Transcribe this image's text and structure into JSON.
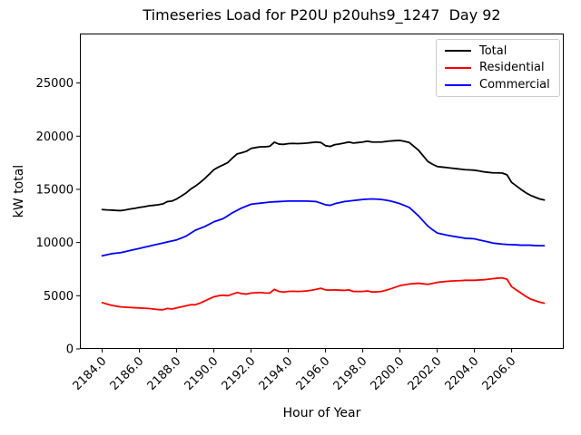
{
  "figure": {
    "background": "#ffffff"
  },
  "chart_data": {
    "type": "line",
    "title": "Timeseries Load for P20U p20uhs9_1247  Day 92",
    "xlabel": "Hour of Year",
    "ylabel": "kW total",
    "xlim": [
      2182.8,
      2208.8
    ],
    "ylim": [
      0,
      29650
    ],
    "grid": false,
    "legend_position": "upper right",
    "x_ticks": [
      2184,
      2186,
      2188,
      2190,
      2192,
      2194,
      2196,
      2198,
      2200,
      2202,
      2204,
      2206
    ],
    "x_tick_labels": [
      "2184.0",
      "2186.0",
      "2188.0",
      "2190.0",
      "2192.0",
      "2194.0",
      "2196.0",
      "2198.0",
      "2200.0",
      "2202.0",
      "2204.0",
      "2206.0"
    ],
    "y_ticks": [
      0,
      5000,
      10000,
      15000,
      20000,
      25000
    ],
    "y_tick_labels": [
      "0",
      "5000",
      "10000",
      "15000",
      "20000",
      "25000"
    ],
    "x": [
      2184.0,
      2184.25,
      2184.5,
      2184.75,
      2185.0,
      2185.25,
      2185.5,
      2185.75,
      2186.0,
      2186.25,
      2186.5,
      2186.75,
      2187.0,
      2187.25,
      2187.5,
      2187.75,
      2188.0,
      2188.25,
      2188.5,
      2188.75,
      2189.0,
      2189.25,
      2189.5,
      2189.75,
      2190.0,
      2190.25,
      2190.5,
      2190.75,
      2191.0,
      2191.25,
      2191.5,
      2191.75,
      2192.0,
      2192.25,
      2192.5,
      2192.75,
      2193.0,
      2193.25,
      2193.5,
      2193.75,
      2194.0,
      2194.25,
      2194.5,
      2194.75,
      2195.0,
      2195.25,
      2195.5,
      2195.75,
      2196.0,
      2196.25,
      2196.5,
      2196.75,
      2197.0,
      2197.25,
      2197.5,
      2197.75,
      2198.0,
      2198.25,
      2198.5,
      2198.75,
      2199.0,
      2199.25,
      2199.5,
      2199.75,
      2200.0,
      2200.25,
      2200.5,
      2200.75,
      2201.0,
      2201.25,
      2201.5,
      2201.75,
      2202.0,
      2202.25,
      2202.5,
      2202.75,
      2203.0,
      2203.25,
      2203.5,
      2203.75,
      2204.0,
      2204.25,
      2204.5,
      2204.75,
      2205.0,
      2205.25,
      2205.5,
      2205.75,
      2206.0,
      2206.25,
      2206.5,
      2206.75,
      2207.0,
      2207.25,
      2207.5,
      2207.75
    ],
    "series": [
      {
        "name": "Total",
        "color": "#000000",
        "values": [
          13100,
          13070,
          13050,
          13020,
          13000,
          13070,
          13150,
          13220,
          13300,
          13370,
          13450,
          13500,
          13550,
          13630,
          13850,
          13900,
          14100,
          14370,
          14650,
          15020,
          15300,
          15630,
          16000,
          16420,
          16850,
          17100,
          17300,
          17520,
          17950,
          18330,
          18450,
          18580,
          18850,
          18930,
          19000,
          19000,
          19050,
          19430,
          19250,
          19230,
          19300,
          19320,
          19300,
          19320,
          19350,
          19400,
          19450,
          19400,
          19100,
          19030,
          19200,
          19270,
          19350,
          19450,
          19350,
          19400,
          19450,
          19530,
          19450,
          19450,
          19450,
          19500,
          19550,
          19580,
          19600,
          19510,
          19400,
          19040,
          18670,
          18140,
          17620,
          17360,
          17150,
          17100,
          17050,
          17000,
          16950,
          16900,
          16850,
          16830,
          16800,
          16730,
          16650,
          16600,
          16550,
          16550,
          16530,
          16370,
          15650,
          15330,
          15000,
          14700,
          14450,
          14270,
          14100,
          14000
        ]
      },
      {
        "name": "Residential",
        "color": "#ff0000",
        "values": [
          4350,
          4220,
          4100,
          4020,
          3950,
          3920,
          3900,
          3870,
          3850,
          3820,
          3800,
          3750,
          3700,
          3680,
          3800,
          3750,
          3850,
          3950,
          4050,
          4150,
          4150,
          4300,
          4500,
          4700,
          4900,
          5000,
          5050,
          5000,
          5150,
          5300,
          5200,
          5150,
          5250,
          5280,
          5300,
          5250,
          5250,
          5600,
          5400,
          5350,
          5400,
          5420,
          5400,
          5420,
          5450,
          5520,
          5600,
          5700,
          5550,
          5530,
          5550,
          5520,
          5500,
          5550,
          5400,
          5400,
          5400,
          5450,
          5350,
          5370,
          5400,
          5520,
          5650,
          5800,
          5950,
          6030,
          6100,
          6140,
          6170,
          6120,
          6070,
          6160,
          6250,
          6300,
          6350,
          6380,
          6400,
          6420,
          6450,
          6450,
          6450,
          6480,
          6500,
          6550,
          6600,
          6650,
          6680,
          6550,
          5850,
          5550,
          5250,
          4950,
          4700,
          4550,
          4400,
          4300
        ]
      },
      {
        "name": "Commercial",
        "color": "#0000ff",
        "values": [
          8750,
          8850,
          8950,
          9000,
          9050,
          9150,
          9250,
          9350,
          9450,
          9550,
          9650,
          9750,
          9850,
          9950,
          10050,
          10150,
          10250,
          10420,
          10600,
          10870,
          11150,
          11330,
          11500,
          11720,
          11950,
          12100,
          12250,
          12520,
          12800,
          13030,
          13250,
          13430,
          13600,
          13650,
          13700,
          13750,
          13800,
          13830,
          13850,
          13880,
          13900,
          13900,
          13900,
          13900,
          13900,
          13880,
          13850,
          13700,
          13550,
          13500,
          13650,
          13750,
          13850,
          13900,
          13950,
          14000,
          14050,
          14080,
          14100,
          14080,
          14050,
          13980,
          13900,
          13780,
          13650,
          13480,
          13300,
          12900,
          12500,
          12020,
          11550,
          11200,
          10900,
          10800,
          10700,
          10620,
          10550,
          10480,
          10400,
          10380,
          10350,
          10250,
          10150,
          10050,
          9950,
          9900,
          9850,
          9820,
          9800,
          9780,
          9750,
          9750,
          9750,
          9720,
          9700,
          9700
        ]
      }
    ]
  }
}
